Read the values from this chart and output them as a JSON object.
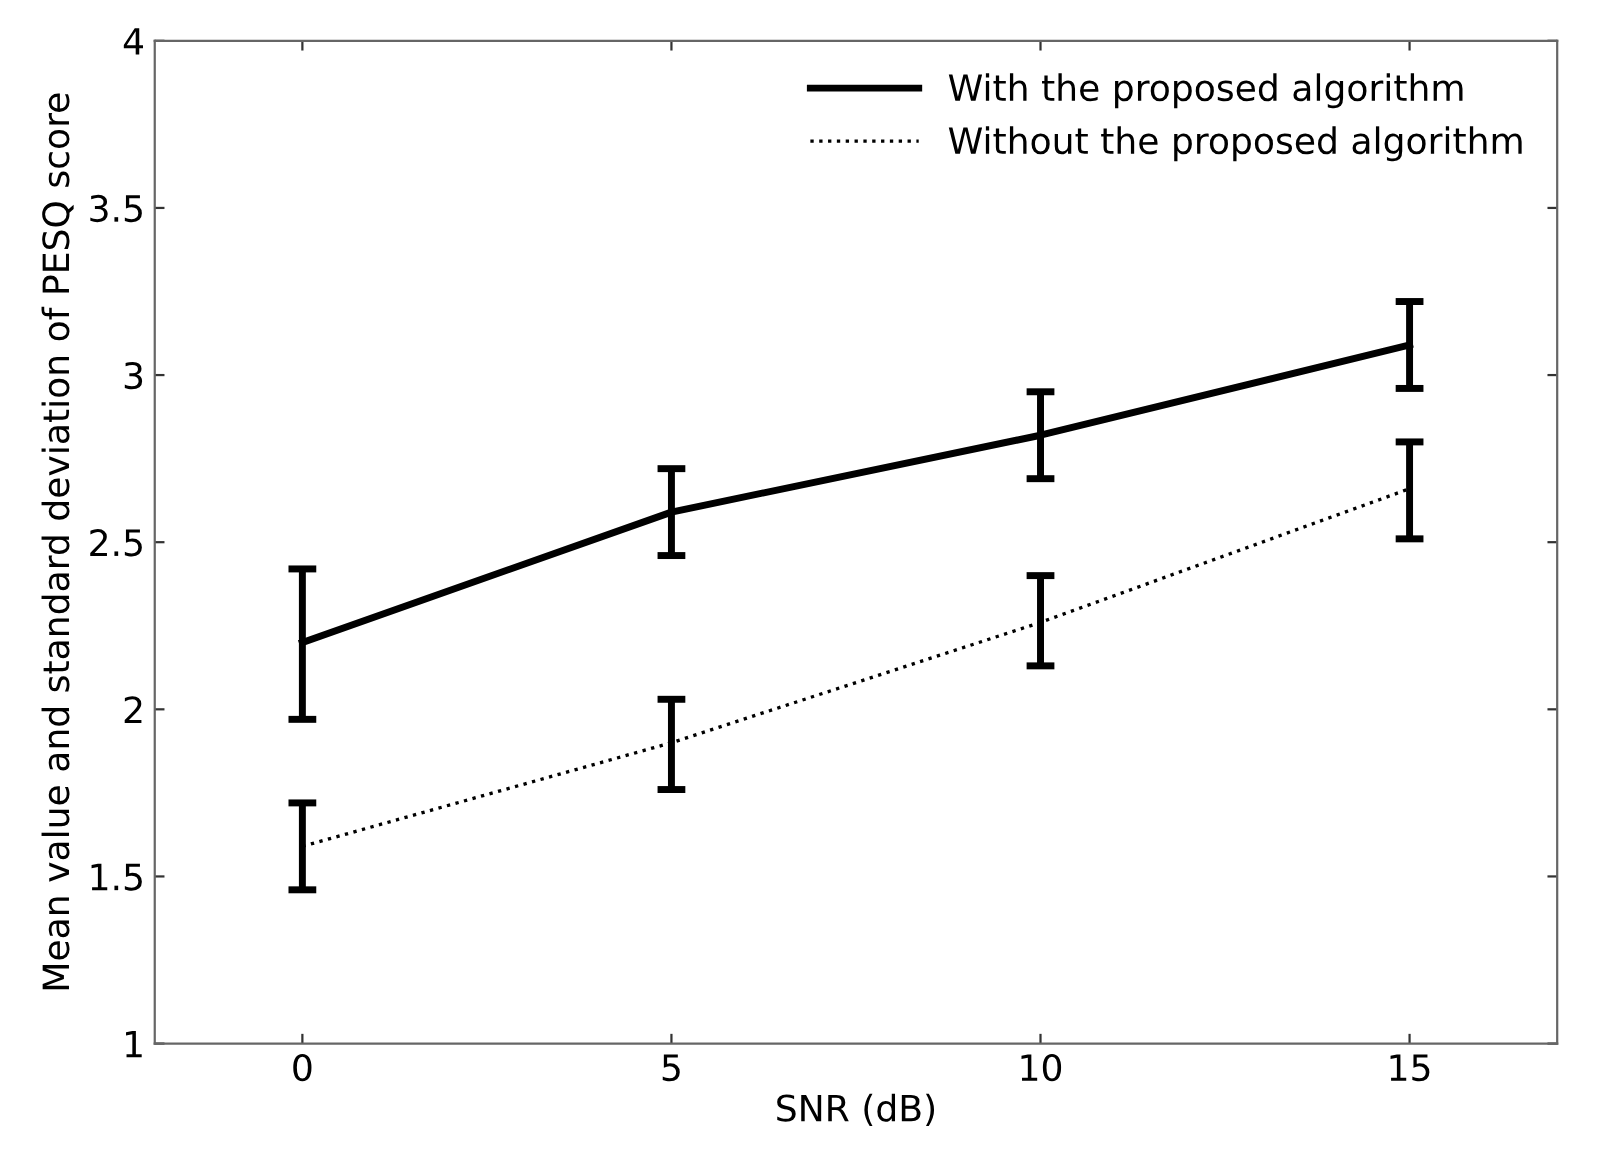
{
  "chart_data": {
    "type": "line",
    "xlabel": "SNR (dB)",
    "ylabel": "Mean value and standard deviation of PESQ score",
    "x": [
      0,
      5,
      10,
      15
    ],
    "series": [
      {
        "name": "With the proposed algorithm",
        "color": "#000000",
        "line_style": "solid",
        "values": [
          2.2,
          2.59,
          2.82,
          3.09
        ],
        "errors": [
          [
            1.97,
            2.42
          ],
          [
            2.46,
            2.72
          ],
          [
            2.69,
            2.95
          ],
          [
            2.96,
            3.22
          ]
        ]
      },
      {
        "name": "Without the proposed algorithm",
        "color": "#000000",
        "line_style": "dotted",
        "values": [
          1.59,
          1.9,
          2.26,
          2.66
        ],
        "errors": [
          [
            1.46,
            1.72
          ],
          [
            1.76,
            2.03
          ],
          [
            2.13,
            2.4
          ],
          [
            2.51,
            2.8
          ]
        ]
      }
    ],
    "xlim": [
      -2,
      17
    ],
    "ylim": [
      1,
      4
    ],
    "xticks": [
      0,
      5,
      10,
      15
    ],
    "yticks": [
      1,
      1.5,
      2,
      2.5,
      3,
      3.5,
      4
    ],
    "grid": false,
    "legend": "top right",
    "marker": "none"
  }
}
